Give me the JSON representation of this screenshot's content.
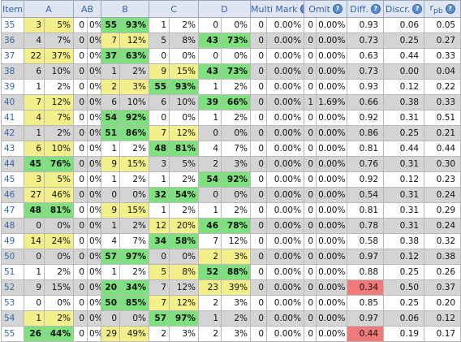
{
  "headers": {
    "item": "Item",
    "a": "A",
    "ab": "AB",
    "b": "B",
    "c": "C",
    "d": "D",
    "multi_mark": "Multi Mark",
    "omit": "Omit",
    "diff": "Diff.",
    "discr": "Discr.",
    "rpb": "r",
    "rpb_sub": "pb"
  },
  "help_icon": "help-icon",
  "colors": {
    "yellow": "#f3f08c",
    "green": "#7fe07f",
    "red": "#ef7a7a",
    "row_alt": "#d4d4d4"
  },
  "rows": [
    {
      "item": "35",
      "a": [
        "3",
        "5%"
      ],
      "ab": [
        "0",
        "0%"
      ],
      "b": [
        "55",
        "93%"
      ],
      "c": [
        "1",
        "2%"
      ],
      "d": [
        "0",
        "0%"
      ],
      "mm": [
        "0",
        "0.00%"
      ],
      "om": [
        "0",
        "0.00%"
      ],
      "diff": "0.93",
      "discr": "0.06",
      "rpb": "0.05"
    },
    {
      "item": "36",
      "a": [
        "4",
        "7%"
      ],
      "ab": [
        "0",
        "0%"
      ],
      "b": [
        "7",
        "12%"
      ],
      "c": [
        "5",
        "8%"
      ],
      "d": [
        "43",
        "73%"
      ],
      "mm": [
        "0",
        "0.00%"
      ],
      "om": [
        "0",
        "0.00%"
      ],
      "diff": "0.73",
      "discr": "0.25",
      "rpb": "0.27"
    },
    {
      "item": "37",
      "a": [
        "22",
        "37%"
      ],
      "ab": [
        "0",
        "0%"
      ],
      "b": [
        "37",
        "63%"
      ],
      "c": [
        "0",
        "0%"
      ],
      "d": [
        "0",
        "0%"
      ],
      "mm": [
        "0",
        "0.00%"
      ],
      "om": [
        "0",
        "0.00%"
      ],
      "diff": "0.63",
      "discr": "0.44",
      "rpb": "0.33"
    },
    {
      "item": "38",
      "a": [
        "6",
        "10%"
      ],
      "ab": [
        "0",
        "0%"
      ],
      "b": [
        "1",
        "2%"
      ],
      "c": [
        "9",
        "15%"
      ],
      "d": [
        "43",
        "73%"
      ],
      "mm": [
        "0",
        "0.00%"
      ],
      "om": [
        "0",
        "0.00%"
      ],
      "diff": "0.73",
      "discr": "0.00",
      "rpb": "0.04"
    },
    {
      "item": "39",
      "a": [
        "1",
        "2%"
      ],
      "ab": [
        "0",
        "0%"
      ],
      "b": [
        "2",
        "3%"
      ],
      "c": [
        "55",
        "93%"
      ],
      "d": [
        "1",
        "2%"
      ],
      "mm": [
        "0",
        "0.00%"
      ],
      "om": [
        "0",
        "0.00%"
      ],
      "diff": "0.93",
      "discr": "0.12",
      "rpb": "0.22"
    },
    {
      "item": "40",
      "a": [
        "7",
        "12%"
      ],
      "ab": [
        "0",
        "0%"
      ],
      "b": [
        "6",
        "10%"
      ],
      "c": [
        "6",
        "10%"
      ],
      "d": [
        "39",
        "66%"
      ],
      "mm": [
        "0",
        "0.00%"
      ],
      "om": [
        "1",
        "1.69%"
      ],
      "diff": "0.66",
      "discr": "0.38",
      "rpb": "0.33"
    },
    {
      "item": "41",
      "a": [
        "4",
        "7%"
      ],
      "ab": [
        "0",
        "0%"
      ],
      "b": [
        "54",
        "92%"
      ],
      "c": [
        "0",
        "0%"
      ],
      "d": [
        "1",
        "2%"
      ],
      "mm": [
        "0",
        "0.00%"
      ],
      "om": [
        "0",
        "0.00%"
      ],
      "diff": "0.92",
      "discr": "0.31",
      "rpb": "0.51"
    },
    {
      "item": "42",
      "a": [
        "1",
        "2%"
      ],
      "ab": [
        "0",
        "0%"
      ],
      "b": [
        "51",
        "86%"
      ],
      "c": [
        "7",
        "12%"
      ],
      "d": [
        "0",
        "0%"
      ],
      "mm": [
        "0",
        "0.00%"
      ],
      "om": [
        "0",
        "0.00%"
      ],
      "diff": "0.86",
      "discr": "0.25",
      "rpb": "0.21"
    },
    {
      "item": "43",
      "a": [
        "6",
        "10%"
      ],
      "ab": [
        "0",
        "0%"
      ],
      "b": [
        "1",
        "2%"
      ],
      "c": [
        "48",
        "81%"
      ],
      "d": [
        "4",
        "7%"
      ],
      "mm": [
        "0",
        "0.00%"
      ],
      "om": [
        "0",
        "0.00%"
      ],
      "diff": "0.81",
      "discr": "0.44",
      "rpb": "0.44"
    },
    {
      "item": "44",
      "a": [
        "45",
        "76%"
      ],
      "ab": [
        "0",
        "0%"
      ],
      "b": [
        "9",
        "15%"
      ],
      "c": [
        "3",
        "5%"
      ],
      "d": [
        "2",
        "3%"
      ],
      "mm": [
        "0",
        "0.00%"
      ],
      "om": [
        "0",
        "0.00%"
      ],
      "diff": "0.76",
      "discr": "0.31",
      "rpb": "0.30"
    },
    {
      "item": "45",
      "a": [
        "3",
        "5%"
      ],
      "ab": [
        "0",
        "0%"
      ],
      "b": [
        "1",
        "2%"
      ],
      "c": [
        "1",
        "2%"
      ],
      "d": [
        "54",
        "92%"
      ],
      "mm": [
        "0",
        "0.00%"
      ],
      "om": [
        "0",
        "0.00%"
      ],
      "diff": "0.92",
      "discr": "0.12",
      "rpb": "0.23"
    },
    {
      "item": "46",
      "a": [
        "27",
        "46%"
      ],
      "ab": [
        "0",
        "0%"
      ],
      "b": [
        "0",
        "0%"
      ],
      "c": [
        "32",
        "54%"
      ],
      "d": [
        "0",
        "0%"
      ],
      "mm": [
        "0",
        "0.00%"
      ],
      "om": [
        "0",
        "0.00%"
      ],
      "diff": "0.54",
      "discr": "0.31",
      "rpb": "0.24"
    },
    {
      "item": "47",
      "a": [
        "48",
        "81%"
      ],
      "ab": [
        "0",
        "0%"
      ],
      "b": [
        "9",
        "15%"
      ],
      "c": [
        "1",
        "2%"
      ],
      "d": [
        "1",
        "2%"
      ],
      "mm": [
        "0",
        "0.00%"
      ],
      "om": [
        "0",
        "0.00%"
      ],
      "diff": "0.81",
      "discr": "0.31",
      "rpb": "0.29"
    },
    {
      "item": "48",
      "a": [
        "0",
        "0%"
      ],
      "ab": [
        "0",
        "0%"
      ],
      "b": [
        "1",
        "2%"
      ],
      "c": [
        "12",
        "20%"
      ],
      "d": [
        "46",
        "78%"
      ],
      "mm": [
        "0",
        "0.00%"
      ],
      "om": [
        "0",
        "0.00%"
      ],
      "diff": "0.78",
      "discr": "0.31",
      "rpb": "0.24"
    },
    {
      "item": "49",
      "a": [
        "14",
        "24%"
      ],
      "ab": [
        "0",
        "0%"
      ],
      "b": [
        "4",
        "7%"
      ],
      "c": [
        "34",
        "58%"
      ],
      "d": [
        "7",
        "12%"
      ],
      "mm": [
        "0",
        "0.00%"
      ],
      "om": [
        "0",
        "0.00%"
      ],
      "diff": "0.58",
      "discr": "0.38",
      "rpb": "0.32"
    },
    {
      "item": "50",
      "a": [
        "0",
        "0%"
      ],
      "ab": [
        "0",
        "0%"
      ],
      "b": [
        "57",
        "97%"
      ],
      "c": [
        "0",
        "0%"
      ],
      "d": [
        "2",
        "3%"
      ],
      "mm": [
        "0",
        "0.00%"
      ],
      "om": [
        "0",
        "0.00%"
      ],
      "diff": "0.97",
      "discr": "0.12",
      "rpb": "0.38"
    },
    {
      "item": "51",
      "a": [
        "1",
        "2%"
      ],
      "ab": [
        "0",
        "0%"
      ],
      "b": [
        "1",
        "2%"
      ],
      "c": [
        "5",
        "8%"
      ],
      "d": [
        "52",
        "88%"
      ],
      "mm": [
        "0",
        "0.00%"
      ],
      "om": [
        "0",
        "0.00%"
      ],
      "diff": "0.88",
      "discr": "0.25",
      "rpb": "0.26"
    },
    {
      "item": "52",
      "a": [
        "9",
        "15%"
      ],
      "ab": [
        "0",
        "0%"
      ],
      "b": [
        "20",
        "34%"
      ],
      "c": [
        "7",
        "12%"
      ],
      "d": [
        "23",
        "39%"
      ],
      "mm": [
        "0",
        "0.00%"
      ],
      "om": [
        "0",
        "0.00%"
      ],
      "diff": "0.34",
      "discr": "0.50",
      "rpb": "0.37"
    },
    {
      "item": "53",
      "a": [
        "0",
        "0%"
      ],
      "ab": [
        "0",
        "0%"
      ],
      "b": [
        "50",
        "85%"
      ],
      "c": [
        "7",
        "12%"
      ],
      "d": [
        "2",
        "3%"
      ],
      "mm": [
        "0",
        "0.00%"
      ],
      "om": [
        "0",
        "0.00%"
      ],
      "diff": "0.85",
      "discr": "0.25",
      "rpb": "0.20"
    },
    {
      "item": "54",
      "a": [
        "1",
        "2%"
      ],
      "ab": [
        "0",
        "0%"
      ],
      "b": [
        "0",
        "0%"
      ],
      "c": [
        "57",
        "97%"
      ],
      "d": [
        "1",
        "2%"
      ],
      "mm": [
        "0",
        "0.00%"
      ],
      "om": [
        "0",
        "0.00%"
      ],
      "diff": "0.97",
      "discr": "0.06",
      "rpb": "0.12"
    },
    {
      "item": "55",
      "a": [
        "26",
        "44%"
      ],
      "ab": [
        "0",
        "0%"
      ],
      "b": [
        "29",
        "49%"
      ],
      "c": [
        "2",
        "3%"
      ],
      "d": [
        "2",
        "3%"
      ],
      "mm": [
        "0",
        "0.00%"
      ],
      "om": [
        "0",
        "0.00%"
      ],
      "diff": "0.44",
      "discr": "0.19",
      "rpb": "0.17"
    }
  ],
  "highlights": {
    "35": {
      "a": "yel",
      "b": "grn"
    },
    "36": {
      "b": "yel",
      "d": "grn"
    },
    "37": {
      "a": "yel",
      "b": "grn"
    },
    "38": {
      "c": "yel",
      "d": "grn"
    },
    "39": {
      "b": "yel",
      "c": "grn"
    },
    "40": {
      "a": "yel",
      "d": "grn"
    },
    "41": {
      "a": "yel",
      "b": "grn"
    },
    "42": {
      "b": "grn",
      "c": "yel"
    },
    "43": {
      "a": "yel",
      "c": "grn"
    },
    "44": {
      "a": "grn",
      "b": "yel"
    },
    "45": {
      "a": "yel",
      "d": "grn"
    },
    "46": {
      "a": "yel",
      "c": "grn"
    },
    "47": {
      "a": "grn",
      "b": "yel"
    },
    "48": {
      "c": "yel",
      "d": "grn"
    },
    "49": {
      "a": "yel",
      "c": "grn"
    },
    "50": {
      "b": "grn",
      "d": "yel"
    },
    "51": {
      "c": "yel",
      "d": "grn"
    },
    "52": {
      "b": "grn",
      "d": "yel",
      "diff": "red"
    },
    "53": {
      "b": "grn",
      "c": "yel"
    },
    "54": {
      "a": "yel",
      "c": "grn"
    },
    "55": {
      "a": "grn",
      "b": "yel",
      "diff": "red"
    }
  }
}
